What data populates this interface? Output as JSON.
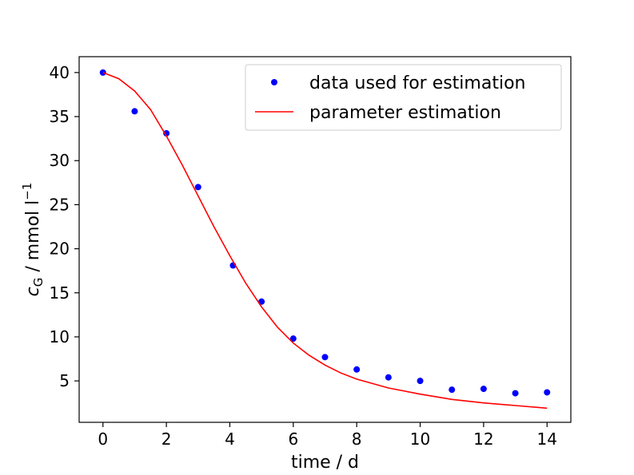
{
  "chart_data": {
    "type": "scatter",
    "x_label": "time / d",
    "y_label_main": "c",
    "y_label_sub": "G",
    "y_label_rest": " / mmol l",
    "y_label_sup": "−1",
    "x_ticks": [
      0,
      2,
      4,
      6,
      8,
      10,
      12,
      14
    ],
    "y_ticks": [
      5,
      10,
      15,
      20,
      25,
      30,
      35,
      40
    ],
    "xlim": [
      -0.75,
      14.75
    ],
    "ylim": [
      0.3,
      41.8
    ],
    "grid": false,
    "legend_position": "upper right",
    "series": [
      {
        "name": "data used for estimation",
        "kind": "scatter",
        "color": "#0000ff",
        "points": [
          {
            "x": 0,
            "y": 40.0
          },
          {
            "x": 1,
            "y": 35.6
          },
          {
            "x": 2,
            "y": 33.1
          },
          {
            "x": 3,
            "y": 27.0
          },
          {
            "x": 4.1,
            "y": 18.1
          },
          {
            "x": 5,
            "y": 14.0
          },
          {
            "x": 6,
            "y": 9.8
          },
          {
            "x": 7,
            "y": 7.7
          },
          {
            "x": 8,
            "y": 6.3
          },
          {
            "x": 9,
            "y": 5.4
          },
          {
            "x": 10,
            "y": 5.0
          },
          {
            "x": 11,
            "y": 4.0
          },
          {
            "x": 12,
            "y": 4.1
          },
          {
            "x": 13,
            "y": 3.6
          },
          {
            "x": 14,
            "y": 3.7
          }
        ]
      },
      {
        "name": "parameter estimation",
        "kind": "line",
        "color": "#ff0000",
        "points": [
          {
            "x": 0,
            "y": 40.0
          },
          {
            "x": 0.5,
            "y": 39.3
          },
          {
            "x": 1,
            "y": 37.9
          },
          {
            "x": 1.5,
            "y": 35.8
          },
          {
            "x": 2,
            "y": 32.8
          },
          {
            "x": 2.5,
            "y": 29.5
          },
          {
            "x": 3,
            "y": 26.0
          },
          {
            "x": 3.5,
            "y": 22.5
          },
          {
            "x": 4,
            "y": 19.2
          },
          {
            "x": 4.5,
            "y": 16.1
          },
          {
            "x": 5,
            "y": 13.4
          },
          {
            "x": 5.5,
            "y": 11.1
          },
          {
            "x": 6,
            "y": 9.3
          },
          {
            "x": 6.5,
            "y": 7.9
          },
          {
            "x": 7,
            "y": 6.8
          },
          {
            "x": 7.5,
            "y": 5.9
          },
          {
            "x": 8,
            "y": 5.2
          },
          {
            "x": 9,
            "y": 4.2
          },
          {
            "x": 10,
            "y": 3.5
          },
          {
            "x": 11,
            "y": 2.9
          },
          {
            "x": 12,
            "y": 2.5
          },
          {
            "x": 13,
            "y": 2.2
          },
          {
            "x": 14,
            "y": 1.9
          }
        ]
      }
    ]
  }
}
